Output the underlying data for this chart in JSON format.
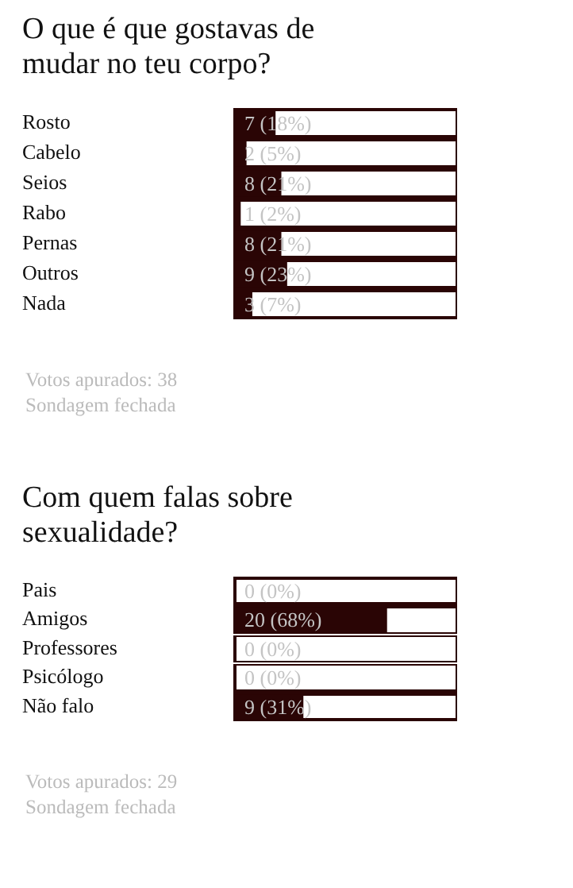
{
  "chart_data": [
    {
      "type": "bar",
      "orientation": "horizontal",
      "title": "O que é que gostavas de mudar no teu corpo?",
      "categories": [
        "Rosto",
        "Cabelo",
        "Seios",
        "Rabo",
        "Pernas",
        "Outros",
        "Nada"
      ],
      "values": [
        7,
        2,
        8,
        1,
        8,
        9,
        3
      ],
      "value_labels": [
        "7 (18%)",
        "2 (5%)",
        "8 (21%)",
        "1 (2%)",
        "8 (21%)",
        "9 (23%)",
        "3 (7%)"
      ],
      "color": "#2a0505",
      "xlim": [
        0,
        38
      ],
      "tick_labels": "y",
      "annotations": [
        "Votos apurados: 38",
        "Sondagem fechada"
      ]
    },
    {
      "type": "bar",
      "orientation": "horizontal",
      "title": "Com quem falas sobre sexualidade?",
      "categories": [
        "Pais",
        "Amigos",
        "Professores",
        "Psicólogo",
        "Não falo"
      ],
      "values": [
        0,
        20,
        0,
        0,
        9
      ],
      "value_labels": [
        "0 (0%)",
        "20 (68%)",
        "0 (0%)",
        "0 (0%)",
        "9 (31%)"
      ],
      "color": "#2a0505",
      "xlim": [
        0,
        29
      ],
      "tick_labels": "y",
      "annotations": [
        "Votos apurados: 29",
        "Sondagem fechada"
      ]
    }
  ]
}
